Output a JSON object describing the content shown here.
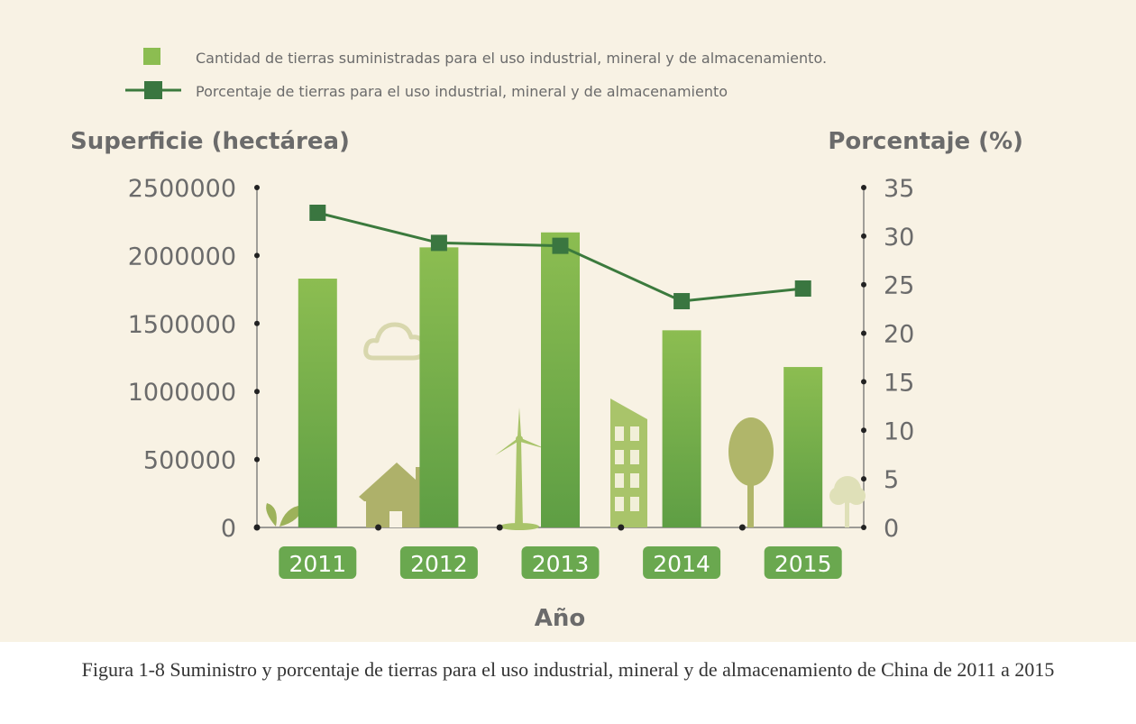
{
  "chart_data": {
    "type": "bar",
    "categories": [
      "2011",
      "2012",
      "2013",
      "2014",
      "2015"
    ],
    "series": [
      {
        "name": "Cantidad de tierras suministradas para el uso industrial, mineral y de almacenamiento.",
        "type": "bar",
        "axis": "left",
        "values": [
          1830000,
          2060000,
          2170000,
          1450000,
          1180000
        ]
      },
      {
        "name": "Porcentaje de tierras para el uso industrial, mineral y de almacenamiento",
        "type": "line",
        "axis": "right",
        "values": [
          32.4,
          29.3,
          29.0,
          23.3,
          24.6
        ]
      }
    ],
    "ylabel_left": "Superficie (hectárea)",
    "ylabel_right": "Porcentaje (%)",
    "xlabel": "Año",
    "yticks_left": [
      "2500000",
      "2000000",
      "1500000",
      "1000000",
      "500000",
      "0"
    ],
    "yticks_right": [
      "35",
      "30",
      "25",
      "20",
      "15",
      "10",
      "5",
      "0"
    ],
    "ylim_left": [
      0,
      2500000
    ],
    "ylim_right": [
      0,
      35
    ],
    "legend_position": "top-left",
    "grid": false,
    "colors": {
      "bar_top": "#8cbd51",
      "bar_bottom": "#5e9e44",
      "line": "#3b7a3d",
      "marker": "#3a7640",
      "year_badge": "#6aa84f",
      "decor": "#b0b66a",
      "panel_bg": "#f8f2e4"
    }
  },
  "caption": "Figura 1-8 Suministro y porcentaje de tierras para el uso industrial, mineral y de almacenamiento de China de 2011 a 2015",
  "decorations": [
    "sprout-icon",
    "house-icon",
    "cloud-icon",
    "wind-turbine-icon",
    "building-icon",
    "tree-icon",
    "small-tree-icon"
  ]
}
